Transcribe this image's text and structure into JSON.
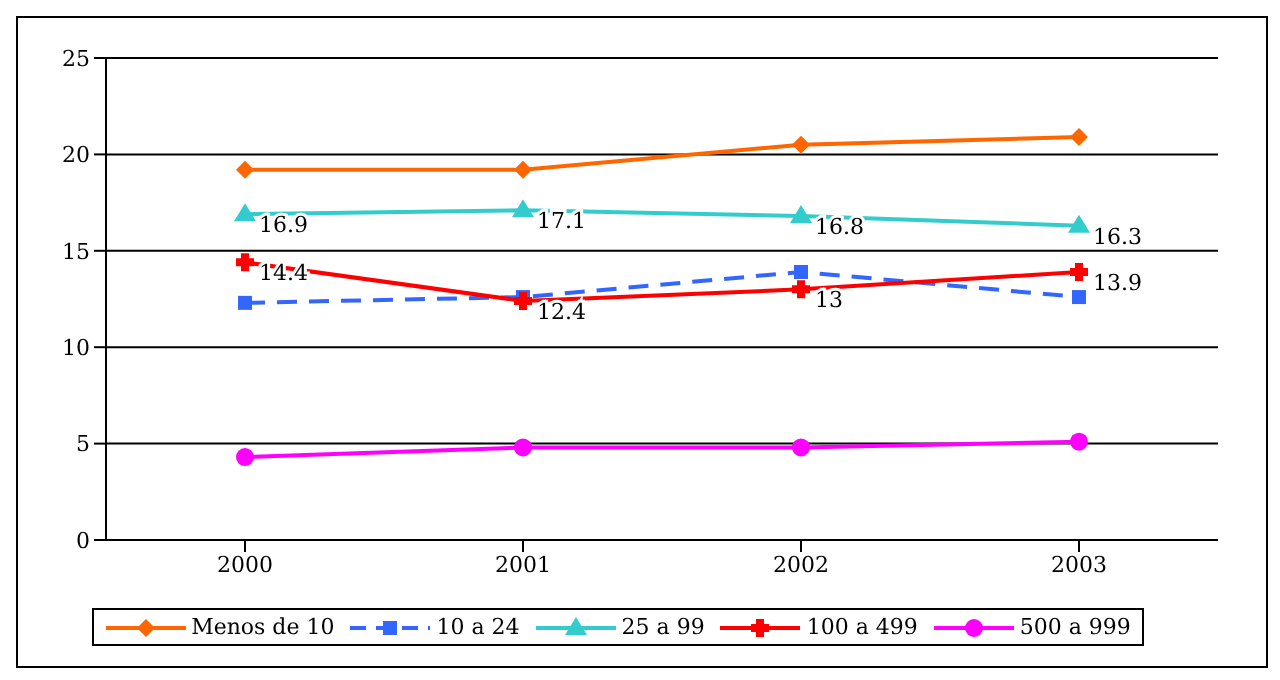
{
  "chart_data": {
    "type": "line",
    "categories": [
      "2000",
      "2001",
      "2002",
      "2003"
    ],
    "ylim": [
      0,
      25
    ],
    "yticks": [
      0,
      5,
      10,
      15,
      20,
      25
    ],
    "grid": "y",
    "legend": "bottom",
    "series": [
      {
        "name": "Menos de 10",
        "color": "#ff6600",
        "marker": "diamond",
        "line_style": "solid",
        "values": [
          19.2,
          19.2,
          20.5,
          20.9
        ]
      },
      {
        "name": "10 a 24",
        "color": "#3366ff",
        "marker": "square",
        "line_style": "dashed",
        "values": [
          12.3,
          12.6,
          13.9,
          12.6
        ]
      },
      {
        "name": "25 a 99",
        "color": "#33cccc",
        "marker": "triangle",
        "line_style": "solid",
        "values": [
          16.9,
          17.1,
          16.8,
          16.3
        ],
        "value_labels": [
          "16.9",
          "17.1",
          "16.8",
          "16.3"
        ]
      },
      {
        "name": "100 a 499",
        "color": "#ff0000",
        "marker": "cross",
        "line_style": "solid",
        "values": [
          14.4,
          12.4,
          13,
          13.9
        ],
        "value_labels": [
          "14.4",
          "12.4",
          "13",
          "13.9"
        ]
      },
      {
        "name": "500 a 999",
        "color": "#ff00ff",
        "marker": "circle",
        "line_style": "solid",
        "values": [
          4.3,
          4.8,
          4.8,
          5.1
        ]
      }
    ]
  }
}
